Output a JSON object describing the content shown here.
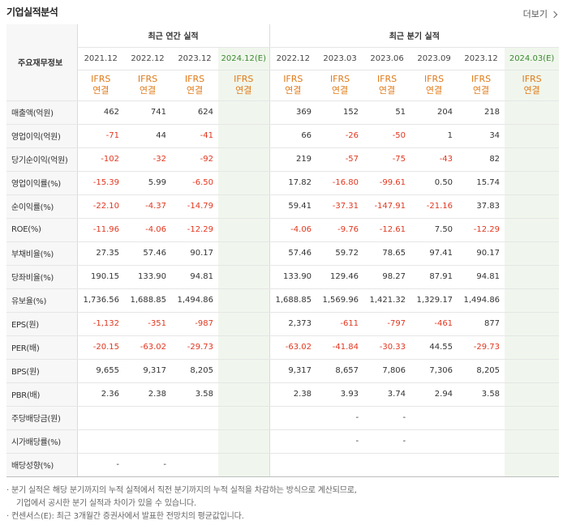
{
  "header": {
    "title": "기업실적분석",
    "more_label": "더보기"
  },
  "table": {
    "corner_label": "주요재무정보",
    "groups": {
      "annual": "최근 연간 실적",
      "quarterly": "최근 분기 실적"
    },
    "periods": [
      "2021.12",
      "2022.12",
      "2023.12",
      "2024.12(E)",
      "2022.12",
      "2023.03",
      "2023.06",
      "2023.09",
      "2023.12",
      "2024.03(E)"
    ],
    "ifrs_top": "IFRS",
    "ifrs_bottom": "연결",
    "rows": [
      {
        "label": "매출액(억원)",
        "values": [
          "462",
          "741",
          "624",
          "",
          "369",
          "152",
          "51",
          "204",
          "218",
          ""
        ]
      },
      {
        "label": "영업이익(억원)",
        "values": [
          "-71",
          "44",
          "-41",
          "",
          "66",
          "-26",
          "-50",
          "1",
          "34",
          ""
        ]
      },
      {
        "label": "당기순이익(억원)",
        "values": [
          "-102",
          "-32",
          "-92",
          "",
          "219",
          "-57",
          "-75",
          "-43",
          "82",
          ""
        ]
      },
      {
        "label": "영업이익률(%)",
        "values": [
          "-15.39",
          "5.99",
          "-6.50",
          "",
          "17.82",
          "-16.80",
          "-99.61",
          "0.50",
          "15.74",
          ""
        ]
      },
      {
        "label": "순이익률(%)",
        "values": [
          "-22.10",
          "-4.37",
          "-14.79",
          "",
          "59.41",
          "-37.31",
          "-147.91",
          "-21.16",
          "37.83",
          ""
        ]
      },
      {
        "label": "ROE(%)",
        "values": [
          "-11.96",
          "-4.06",
          "-12.29",
          "",
          "-4.06",
          "-9.76",
          "-12.61",
          "7.50",
          "-12.29",
          ""
        ]
      },
      {
        "label": "부채비율(%)",
        "values": [
          "27.35",
          "57.46",
          "90.17",
          "",
          "57.46",
          "59.72",
          "78.65",
          "97.41",
          "90.17",
          ""
        ]
      },
      {
        "label": "당좌비율(%)",
        "values": [
          "190.15",
          "133.90",
          "94.81",
          "",
          "133.90",
          "129.46",
          "98.27",
          "87.91",
          "94.81",
          ""
        ]
      },
      {
        "label": "유보율(%)",
        "values": [
          "1,736.56",
          "1,688.85",
          "1,494.86",
          "",
          "1,688.85",
          "1,569.96",
          "1,421.32",
          "1,329.17",
          "1,494.86",
          ""
        ]
      },
      {
        "label": "EPS(원)",
        "values": [
          "-1,132",
          "-351",
          "-987",
          "",
          "2,373",
          "-611",
          "-797",
          "-461",
          "877",
          ""
        ]
      },
      {
        "label": "PER(배)",
        "values": [
          "-20.15",
          "-63.02",
          "-29.73",
          "",
          "-63.02",
          "-41.84",
          "-30.33",
          "44.55",
          "-29.73",
          ""
        ]
      },
      {
        "label": "BPS(원)",
        "values": [
          "9,655",
          "9,317",
          "8,205",
          "",
          "9,317",
          "8,657",
          "7,806",
          "7,306",
          "8,205",
          ""
        ]
      },
      {
        "label": "PBR(배)",
        "values": [
          "2.36",
          "2.38",
          "3.58",
          "",
          "2.38",
          "3.93",
          "3.74",
          "2.94",
          "3.58",
          ""
        ]
      },
      {
        "label": "주당배당금(원)",
        "values": [
          "",
          "",
          "",
          "",
          "",
          "-",
          "-",
          "",
          "",
          ""
        ]
      },
      {
        "label": "시가배당률(%)",
        "values": [
          "",
          "",
          "",
          "",
          "",
          "-",
          "-",
          "",
          "",
          ""
        ]
      },
      {
        "label": "배당성향(%)",
        "values": [
          "-",
          "-",
          "",
          "",
          "",
          "",
          "",
          "",
          "",
          ""
        ]
      }
    ]
  },
  "notes": {
    "line1": "· 분기 실적은 해당 분기까지의 누적 실적에서 직전 분기까지의 누적 실적을 차감하는 방식으로 계산되므로,",
    "line2": "기업에서 공시한 분기 실적과 차이가 있을 수 있습니다.",
    "line3": "· 컨센서스(E): 최근 3개월간 증권사에서 발표한 전망치의 평균값입니다."
  },
  "colors": {
    "negative": "#e2361e",
    "ifrs": "#e07b1a",
    "estimate_bg": "#f0f6ed",
    "estimate_label": "#3a8a2e"
  }
}
